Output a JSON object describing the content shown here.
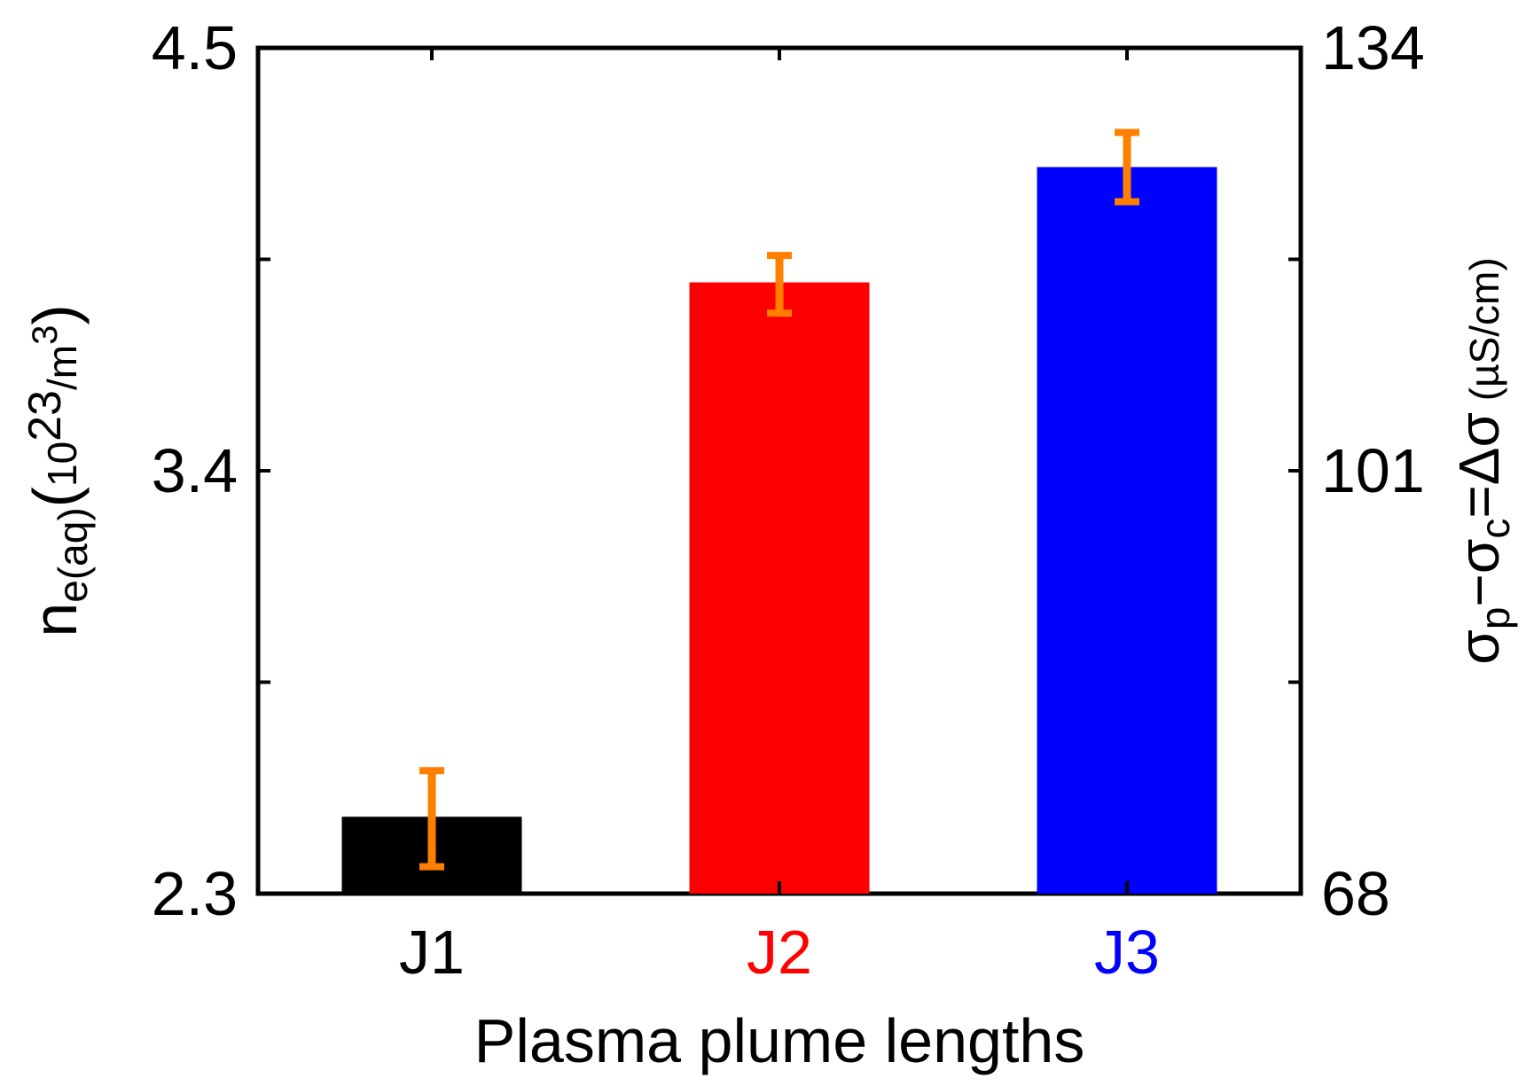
{
  "chart_data": {
    "type": "bar",
    "categories": [
      "J1",
      "J2",
      "J3"
    ],
    "category_colors": [
      "#000000",
      "#ff0000",
      "#0000ff"
    ],
    "values": [
      2.5,
      3.89,
      4.19
    ],
    "error_low": [
      2.37,
      3.81,
      4.1
    ],
    "error_high": [
      2.62,
      3.96,
      4.28
    ],
    "error_color": "#ff8000",
    "xlabel": "Plasma plume lengths",
    "ylim": [
      2.3,
      4.5
    ],
    "y_ticks": [
      2.3,
      3.4,
      4.5
    ],
    "y_tick_labels": [
      "2.3",
      "3.4",
      "4.5"
    ],
    "ylabel": {
      "main": "n",
      "main_sub": "e(aq)",
      "open": "(",
      "unit_base": "10",
      "unit_exp": "23",
      "unit_mid": "/m",
      "unit_exp2": "3",
      "close": ")"
    },
    "y2lim": [
      68,
      134
    ],
    "y2_ticks": [
      68,
      101,
      134
    ],
    "y2_tick_labels": [
      "68",
      "101",
      "134"
    ],
    "y2label": {
      "s1": "σ",
      "s1_sub": "p",
      "op": "−",
      "s2": "σ",
      "s2_sub": "c",
      "eq": "=Δσ",
      "unit": " (µS/cm)"
    },
    "grid": false,
    "legend": "none"
  }
}
